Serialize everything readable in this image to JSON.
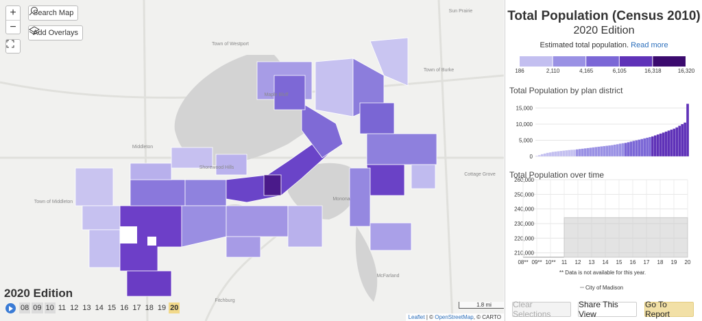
{
  "map": {
    "zoom_in": "+",
    "zoom_out": "−",
    "search": "Search Map",
    "overlays": "Add Overlays",
    "places": [
      "Sun Prairie",
      "Town of Westport",
      "Town of Burke",
      "Maple Bluff",
      "Middleton",
      "Shorewood Hills",
      "Town of Middleton",
      "Monona",
      "Cottage Grove",
      "Fitchburg",
      "McFarland"
    ],
    "edition": "2020 Edition",
    "timeline": [
      "08",
      "09",
      "10",
      "11",
      "12",
      "13",
      "14",
      "15",
      "16",
      "17",
      "18",
      "19",
      "20"
    ],
    "scale": "1.8 mi",
    "attribution": {
      "leaflet": "Leaflet",
      "sep": " | © ",
      "osm": "OpenStreetMap",
      "carto": ", © CARTO"
    }
  },
  "panel": {
    "title": "Total Population (Census 2010)",
    "subtitle": "2020 Edition",
    "description": "Estimated total population.",
    "read_more": "Read more",
    "legend": {
      "colors": [
        "#c3bff0",
        "#9a91e4",
        "#7b67d6",
        "#5f32b8",
        "#3b0a6e"
      ],
      "breaks": [
        186,
        {
          "value": 2110,
          "label": "2,110"
        },
        {
          "value": 4165,
          "label": "4,165"
        },
        {
          "value": 6105,
          "label": "6,105"
        },
        {
          "value": 16318,
          "label": "16,318"
        },
        {
          "value": 16320,
          "label": "16,320"
        }
      ]
    },
    "charts": [
      {
        "type": "bar",
        "title": "Total Population by plan district",
        "values": [
          186,
          400,
          700,
          900,
          1100,
          1250,
          1400,
          1500,
          1600,
          1700,
          1800,
          1900,
          2000,
          2050,
          2100,
          2200,
          2300,
          2400,
          2500,
          2600,
          2700,
          2800,
          2900,
          3000,
          3100,
          3200,
          3300,
          3400,
          3500,
          3650,
          3800,
          3950,
          4100,
          4200,
          4400,
          4600,
          4800,
          5000,
          5200,
          5400,
          5600,
          5800,
          6000,
          6200,
          6500,
          6800,
          7100,
          7400,
          7700,
          8000,
          8300,
          8600,
          9000,
          9500,
          10000,
          10500,
          16318
        ],
        "ylim": [
          0,
          17000
        ],
        "yticks": [
          0,
          {
            "value": 5000,
            "label": "5,000"
          },
          {
            "value": 10000,
            "label": "10,000"
          },
          {
            "value": 15000,
            "label": "15,000"
          }
        ]
      },
      {
        "type": "area",
        "title": "Total Population over time",
        "categories": [
          "08**",
          "09**",
          "10**",
          "11",
          "12",
          "13",
          "14",
          "15",
          "16",
          "17",
          "18",
          "19",
          "20"
        ],
        "series": [
          {
            "name": "City of Madison",
            "color": "#c8c8c8",
            "values": [
              null,
              null,
              null,
              234000,
              234000,
              234000,
              234000,
              234000,
              234000,
              234000,
              234000,
              234000,
              234000
            ]
          }
        ],
        "ylim": [
          207000,
          260000
        ],
        "yticks": [
          {
            "value": 210000,
            "label": "210,000"
          },
          {
            "value": 220000,
            "label": "220,000"
          },
          {
            "value": 230000,
            "label": "230,000"
          },
          {
            "value": 240000,
            "label": "240,000"
          },
          {
            "value": 250000,
            "label": "250,000"
          },
          {
            "value": 260000,
            "label": "260,000"
          }
        ],
        "note": "** Data is not available for this year."
      }
    ],
    "buttons": [
      "Clear Selections",
      "Share This View",
      "Go To Report"
    ]
  }
}
